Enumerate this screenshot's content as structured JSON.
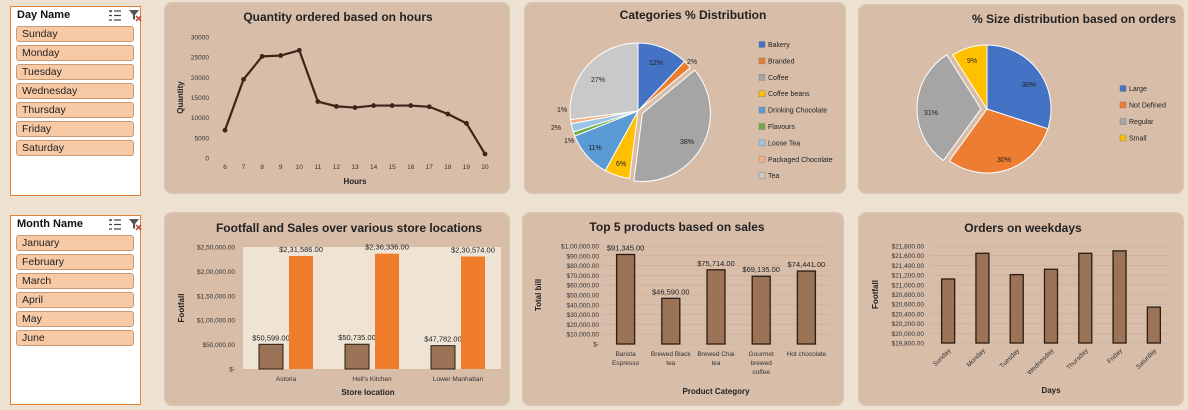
{
  "slicers": {
    "day": {
      "title": "Day Name",
      "items": [
        "Sunday",
        "Monday",
        "Tuesday",
        "Wednesday",
        "Thursday",
        "Friday",
        "Saturday"
      ],
      "icons": [
        "multi-select-icon",
        "clear-filter-icon"
      ]
    },
    "month": {
      "title": "Month Name",
      "items": [
        "January",
        "February",
        "March",
        "April",
        "May",
        "June"
      ],
      "icons": [
        "multi-select-icon",
        "clear-filter-icon"
      ]
    }
  },
  "colors": {
    "page_bg": "#ede1d2",
    "panel_bg": "#d8bda9",
    "bar_brown": "#9b7457",
    "bar_orange": "#ef7d2b",
    "line": "#3b2618",
    "blue": "#4472c4",
    "orange": "#ed7d31",
    "gray": "#a5a5a5",
    "gold": "#ffc000",
    "lightblue": "#5b9bd5",
    "green": "#70ad47"
  },
  "chart_data": [
    {
      "id": "hours",
      "type": "line",
      "title": "Quantity ordered based on hours",
      "xlabel": "Hours",
      "ylabel": "Quantity",
      "x": [
        "6",
        "7",
        "8",
        "9",
        "10",
        "11",
        "12",
        "13",
        "14",
        "15",
        "16",
        "17",
        "18",
        "19",
        "20"
      ],
      "values": [
        6900,
        19500,
        25200,
        25400,
        26700,
        14000,
        12800,
        12500,
        13000,
        13000,
        13000,
        12700,
        10900,
        8600,
        1000
      ],
      "ylim": [
        0,
        30000
      ],
      "yticks": [
        "0",
        "5000",
        "10000",
        "15000",
        "20000",
        "25000",
        "30000"
      ],
      "grid": false
    },
    {
      "id": "categories",
      "type": "pie",
      "title": "Categories % Distribution",
      "legend_position": "right",
      "slices": [
        {
          "label": "Bakery",
          "value": 12,
          "text": "12%",
          "color": "#4472c4"
        },
        {
          "label": "Branded",
          "value": 2,
          "text": "2%",
          "color": "#ed7d31"
        },
        {
          "label": "Coffee",
          "value": 38,
          "text": "38%",
          "color": "#a5a5a5"
        },
        {
          "label": "Coffee beans",
          "value": 6,
          "text": "6%",
          "color": "#ffc000"
        },
        {
          "label": "Drinking Chocolate",
          "value": 11,
          "text": "11%",
          "color": "#5b9bd5"
        },
        {
          "label": "Flavours",
          "value": 1,
          "text": "1%",
          "color": "#70ad47"
        },
        {
          "label": "Loose Tea",
          "value": 2,
          "text": "2%",
          "color": "#9dc3e6"
        },
        {
          "label": "Packaged Chocolate",
          "value": 1,
          "text": "1%",
          "color": "#f4b183"
        },
        {
          "label": "Tea",
          "value": 27,
          "text": "27%",
          "color": "#c9c9c9"
        }
      ]
    },
    {
      "id": "sizes",
      "type": "pie",
      "title": "% Size distribution based on orders",
      "legend_position": "right",
      "slices": [
        {
          "label": "Large",
          "value": 30,
          "text": "30%",
          "color": "#4472c4"
        },
        {
          "label": "Not Defined",
          "value": 30,
          "text": "30%",
          "color": "#ed7d31"
        },
        {
          "label": "Regular",
          "value": 31,
          "text": "31%",
          "color": "#a5a5a5"
        },
        {
          "label": "Small",
          "value": 9,
          "text": "9%",
          "color": "#ffc000"
        }
      ]
    },
    {
      "id": "footfall",
      "type": "bar",
      "title": "Footfall and Sales over various store locations",
      "xlabel": "Store location",
      "ylabel": "Footfall",
      "categories": [
        "Astoria",
        "Hell's Kitchen",
        "Lower Manhattan"
      ],
      "series": [
        {
          "values": [
            50599,
            50735,
            47782
          ],
          "labels": [
            "$50,599.00",
            "$50,735.00",
            "$47,782.00"
          ],
          "color": "#9b7457"
        },
        {
          "values": [
            231586,
            236336,
            230574
          ],
          "labels": [
            "$2,31,586.00",
            "$2,36,336.00",
            "$2,30,574.00"
          ],
          "color": "#ef7d2b"
        }
      ],
      "ylim": [
        0,
        250000
      ],
      "yticks": [
        "$-",
        "$50,000.00",
        "$1,00,000.00",
        "$1,50,000.00",
        "$2,00,000.00",
        "$2,50,000.00"
      ]
    },
    {
      "id": "products",
      "type": "bar",
      "title": "Top 5  products based on sales",
      "xlabel": "Product Category",
      "ylabel": "Total bill",
      "categories": [
        [
          "Barista",
          "Espresso"
        ],
        [
          "Brewed Black",
          "tea"
        ],
        [
          "Brewed Chai",
          "tea"
        ],
        [
          "Gourmet",
          "brewed",
          "coffee"
        ],
        [
          "Hot chocolate"
        ]
      ],
      "values": [
        91345,
        46590,
        75714,
        69135,
        74441
      ],
      "labels": [
        "$91,345.00",
        "$46,590.00",
        "$75,714.00",
        "$69,135.00",
        "$74,441.00"
      ],
      "ylim": [
        0,
        100000
      ],
      "yticks": [
        "$-",
        "$10,000.00",
        "$20,000.00",
        "$30,000.00",
        "$40,000.00",
        "$50,000.00",
        "$60,000.00",
        "$70,000.00",
        "$80,000.00",
        "$90,000.00",
        "$1,00,000.00"
      ],
      "grid": true
    },
    {
      "id": "weekdays",
      "type": "bar",
      "title": "Orders on weekdays",
      "xlabel": "Days",
      "ylabel": "Footfall",
      "categories": [
        "Sunday",
        "Monday",
        "Tuesday",
        "Wednesday",
        "Thursday",
        "Friday",
        "Saturday"
      ],
      "values": [
        21120,
        21650,
        21210,
        21320,
        21650,
        21700,
        20540
      ],
      "ylim": [
        19800,
        21800
      ],
      "yticks": [
        "$19,800.00",
        "$20,000.00",
        "$20,200.00",
        "$20,400.00",
        "$20,600.00",
        "$20,800.00",
        "$21,000.00",
        "$21,200.00",
        "$21,400.00",
        "$21,600.00",
        "$21,800.00"
      ],
      "grid": true
    }
  ]
}
